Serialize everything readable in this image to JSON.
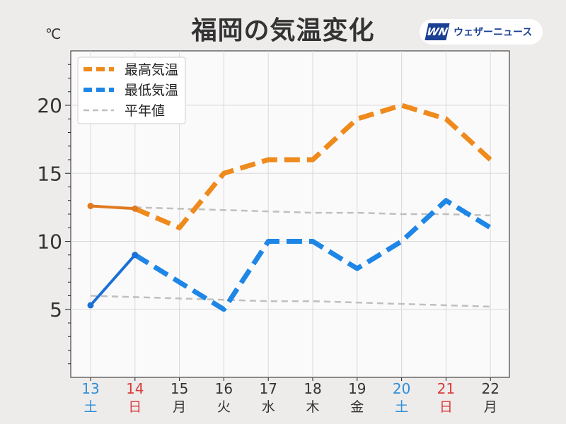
{
  "brand": {
    "mark": "WN",
    "name": "ウェザーニュース"
  },
  "chart_data": {
    "type": "line",
    "title": "福岡の気温変化",
    "ylabel": "℃",
    "xlabel": "",
    "ylim": [
      0,
      24
    ],
    "yticks": [
      5,
      10,
      15,
      20
    ],
    "grid": true,
    "legend_position": "top-left",
    "categories": [
      {
        "day": "13",
        "weekday": "土",
        "color": "#2f8fd8"
      },
      {
        "day": "14",
        "weekday": "日",
        "color": "#d93a3a"
      },
      {
        "day": "15",
        "weekday": "月",
        "color": "#333333"
      },
      {
        "day": "16",
        "weekday": "火",
        "color": "#333333"
      },
      {
        "day": "17",
        "weekday": "水",
        "color": "#333333"
      },
      {
        "day": "18",
        "weekday": "木",
        "color": "#333333"
      },
      {
        "day": "19",
        "weekday": "金",
        "color": "#333333"
      },
      {
        "day": "20",
        "weekday": "土",
        "color": "#2f8fd8"
      },
      {
        "day": "21",
        "weekday": "日",
        "color": "#d93a3a"
      },
      {
        "day": "22",
        "weekday": "月",
        "color": "#333333"
      }
    ],
    "series": [
      {
        "name": "最高気温",
        "color": "#ef8a1c",
        "observed_color": "#e07a1f",
        "values": [
          12.6,
          12.4,
          11,
          15,
          16,
          16,
          19,
          20,
          19,
          16
        ],
        "observed_through_index": 1
      },
      {
        "name": "最低気温",
        "color": "#1e86e6",
        "observed_color": "#1a70d6",
        "values": [
          5.3,
          9,
          7,
          5,
          10,
          10,
          8,
          10,
          13,
          11
        ],
        "observed_through_index": 1
      },
      {
        "name": "平年値",
        "color": "#bfbfbf",
        "values_high": [
          12.5,
          12.5,
          12.4,
          12.3,
          12.2,
          12.1,
          12.1,
          12.0,
          12.0,
          11.9
        ],
        "values_low": [
          6.0,
          5.9,
          5.8,
          5.7,
          5.6,
          5.6,
          5.5,
          5.4,
          5.3,
          5.2
        ]
      }
    ]
  }
}
